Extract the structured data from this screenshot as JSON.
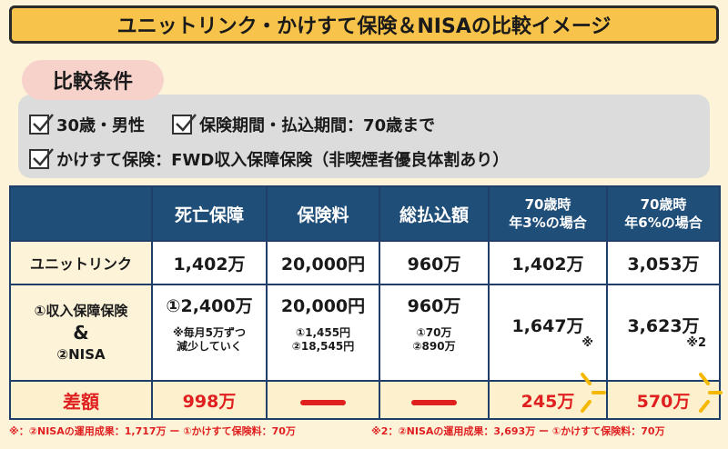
{
  "title": "ユニットリンク・かけすて保険＆NISAの比較イメージ",
  "conditions": {
    "label": "比較条件",
    "items": [
      "30歳・男性",
      "保険期間・払込期間：70歳まで",
      "かけすて保険：FWD収入保障保険（非喫煙者優良体割あり）"
    ]
  },
  "table": {
    "headers": [
      "死亡保障",
      "保険料",
      "総払込額",
      "70歳時\n年3%の場合",
      "70歳時\n年6%の場合"
    ],
    "row_unit_link": {
      "label": "ユニットリンク",
      "values": [
        "1,402万",
        "20,000円",
        "960万",
        "1,402万",
        "3,053万"
      ]
    },
    "row_combo": {
      "label_1": "①収入保障保険",
      "label_amp": "&",
      "label_2": "②NISA",
      "death_main": "①2,400万",
      "death_note_1": "※毎月5万ずつ",
      "death_note_2": "減少していく",
      "premium_main": "20,000円",
      "premium_note_1": "①1,455円",
      "premium_note_2": "②18,545円",
      "total_main": "960万",
      "total_note_1": "①70万",
      "total_note_2": "②890万",
      "r3_value": "1,647万",
      "r3_note": "※",
      "r6_value": "3,623万",
      "r6_note": "※2"
    },
    "row_diff": {
      "label": "差額",
      "values": [
        "998万",
        "245万",
        "570万"
      ]
    }
  },
  "footnotes": {
    "note1": "※：②NISAの運用成果：1,717万 ー ①かけすて保険料：70万",
    "note2": "※2：②NISAの運用成果：3,693万 ー ①かけすて保険料：70万"
  },
  "colors": {
    "title_bg": "#f7c34a",
    "header_bg": "#1f4e79",
    "accent_red": "#e02020",
    "page_bg": "#fdf3d9"
  }
}
